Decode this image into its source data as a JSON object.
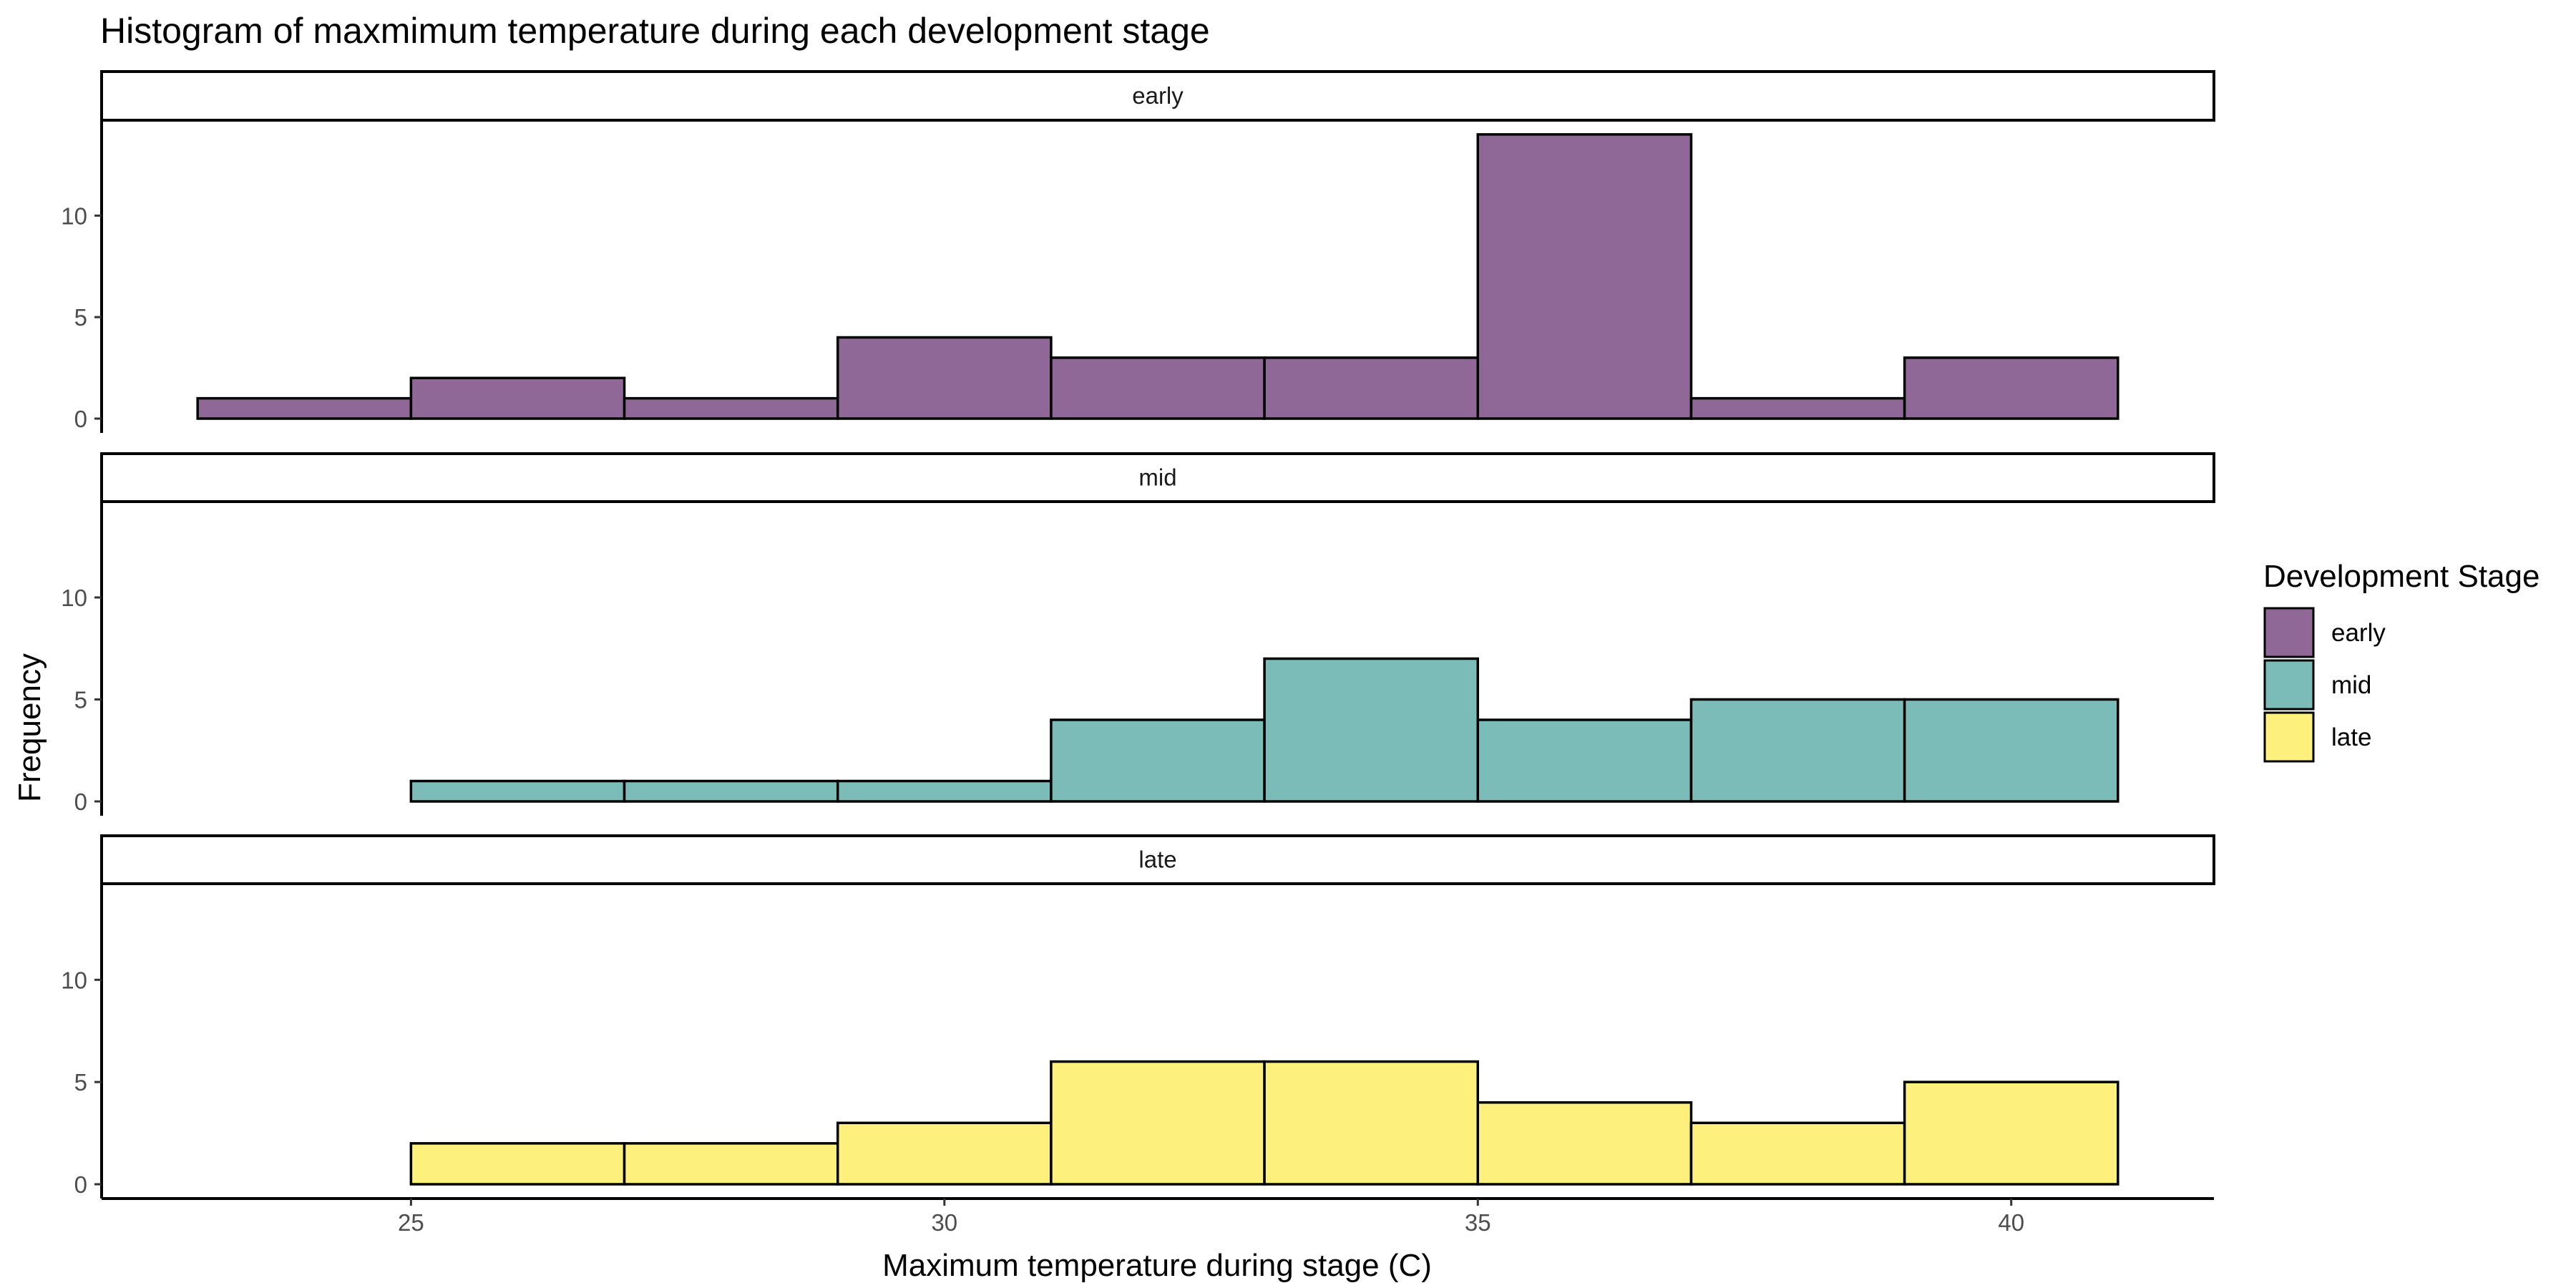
{
  "chart_data": {
    "type": "bar",
    "title": "Histogram of maxmimum temperature during each development stage",
    "xlabel": "Maximum temperature during stage (C)",
    "ylabel": "Frequency",
    "bin_edges": [
      23,
      25,
      27,
      29,
      31,
      33,
      35,
      37,
      39,
      41
    ],
    "xlim": [
      22.1,
      41.9
    ],
    "ylim": [
      0,
      14.7
    ],
    "x_ticks": [
      25,
      30,
      35,
      40
    ],
    "y_ticks": [
      0,
      5,
      10
    ],
    "grid": false,
    "legend": {
      "title": "Development Stage",
      "position": "right"
    },
    "series": [
      {
        "name": "early",
        "color": "#8f6898",
        "values": [
          1,
          2,
          1,
          4,
          3,
          3,
          14,
          1,
          3
        ]
      },
      {
        "name": "mid",
        "color": "#7bbcb8",
        "values": [
          0,
          1,
          1,
          1,
          4,
          7,
          4,
          5,
          5
        ]
      },
      {
        "name": "late",
        "color": "#fef07d",
        "values": [
          0,
          2,
          2,
          3,
          6,
          6,
          4,
          3,
          5
        ]
      }
    ]
  }
}
